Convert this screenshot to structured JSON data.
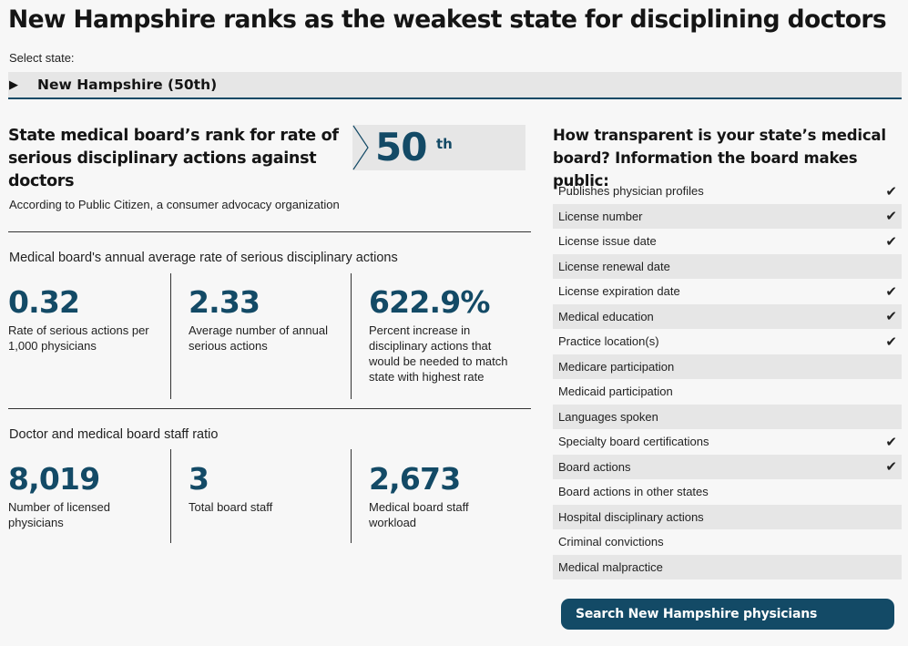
{
  "title": "New Hampshire ranks as the weakest state for disciplining doctors",
  "selector": {
    "label": "Select state:",
    "value": "New Hampshire (50th)"
  },
  "rank": {
    "heading": "State medical board’s rank for rate of serious disciplinary actions against doctors",
    "source": "According to Public Citizen, a consumer advocacy organization",
    "number": "50",
    "suffix": "th"
  },
  "disciplinary": {
    "label": "Medical board's annual average rate of serious disciplinary actions",
    "stats": [
      {
        "value": "0.32",
        "desc": "Rate of serious actions per 1,000 physicians"
      },
      {
        "value": "2.33",
        "desc": "Average number of annual serious actions"
      },
      {
        "value": "622.9%",
        "desc": "Percent increase in disciplinary actions that would be needed to match state with highest rate"
      }
    ]
  },
  "staff": {
    "label": "Doctor and medical board staff ratio",
    "stats": [
      {
        "value": "8,019",
        "desc": "Number of licensed physicians"
      },
      {
        "value": "3",
        "desc": "Total board staff"
      },
      {
        "value": "2,673",
        "desc": "Medical board staff workload"
      }
    ]
  },
  "transparency": {
    "heading": "How transparent is your state’s medical board? Information the board makes public:",
    "check_glyph": "✔",
    "items": [
      {
        "label": "Publishes physician profiles",
        "checked": true
      },
      {
        "label": "License number",
        "checked": true
      },
      {
        "label": "License issue date",
        "checked": true
      },
      {
        "label": "License renewal date",
        "checked": false
      },
      {
        "label": "License expiration date",
        "checked": true
      },
      {
        "label": "Medical education",
        "checked": true
      },
      {
        "label": "Practice location(s)",
        "checked": true
      },
      {
        "label": "Medicare participation",
        "checked": false
      },
      {
        "label": "Medicaid participation",
        "checked": false
      },
      {
        "label": "Languages spoken",
        "checked": false
      },
      {
        "label": "Specialty board certifications",
        "checked": true
      },
      {
        "label": "Board actions",
        "checked": true
      },
      {
        "label": "Board actions in other states",
        "checked": false
      },
      {
        "label": "Hospital disciplinary actions",
        "checked": false
      },
      {
        "label": "Criminal convictions",
        "checked": false
      },
      {
        "label": "Medical malpractice",
        "checked": false
      }
    ]
  },
  "search_button": "Search New Hampshire physicians",
  "colors": {
    "accent": "#134a66",
    "row_shade": "#e6e6e6",
    "background": "#f7f7f7"
  }
}
